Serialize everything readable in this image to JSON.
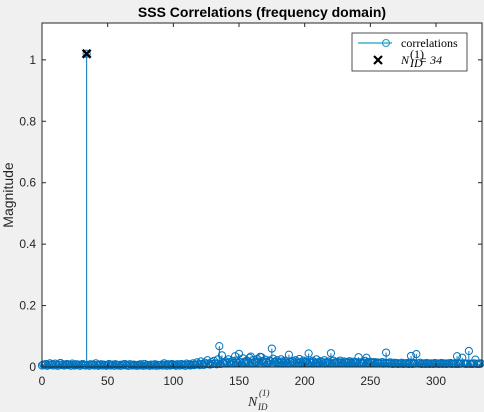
{
  "chart_data": {
    "type": "stem",
    "title": "SSS Correlations (frequency domain)",
    "ylabel": "Magnitude",
    "xlabel": {
      "base": "N",
      "sub": "ID",
      "sup": "(1)"
    },
    "xlim": [
      0,
      335
    ],
    "ylim": [
      0,
      1.12
    ],
    "xticks": [
      0,
      50,
      100,
      150,
      200,
      250,
      300
    ],
    "yticks": [
      0,
      0.2,
      0.4,
      0.6,
      0.8,
      1
    ],
    "ytick_labels": [
      "0",
      "0.2",
      "0.4",
      "0.6",
      "0.8",
      "1"
    ],
    "legend": {
      "position": "top-right",
      "entries": [
        {
          "label": "correlations",
          "marker": "o",
          "color": "#1f9ec0"
        },
        {
          "label_base": "N",
          "label_sub": "ID",
          "label_sup": "(1)",
          "label_suffix": " = 34",
          "marker": "x",
          "color": "#000000"
        }
      ]
    },
    "series": [
      {
        "name": "correlations",
        "color": "#0072bd",
        "x_start": 0,
        "values": [
          0.005,
          0.008,
          0.006,
          0.01,
          0.004,
          0.007,
          0.012,
          0.006,
          0.009,
          0.005,
          0.011,
          0.007,
          0.004,
          0.008,
          0.013,
          0.006,
          0.009,
          0.005,
          0.007,
          0.01,
          0.006,
          0.008,
          0.004,
          0.011,
          0.007,
          0.005,
          0.009,
          0.006,
          0.008,
          0.004,
          0.007,
          0.01,
          0.006,
          0.005,
          1.02,
          0.007,
          0.004,
          0.009,
          0.006,
          0.008,
          0.005,
          0.012,
          0.007,
          0.004,
          0.006,
          0.009,
          0.005,
          0.008,
          0.006,
          0.004,
          0.007,
          0.01,
          0.005,
          0.006,
          0.008,
          0.004,
          0.009,
          0.006,
          0.005,
          0.007,
          0.004,
          0.008,
          0.006,
          0.01,
          0.005,
          0.007,
          0.004,
          0.009,
          0.006,
          0.005,
          0.008,
          0.006,
          0.004,
          0.007,
          0.005,
          0.009,
          0.006,
          0.004,
          0.01,
          0.005,
          0.007,
          0.006,
          0.004,
          0.008,
          0.005,
          0.006,
          0.009,
          0.004,
          0.007,
          0.005,
          0.006,
          0.008,
          0.005,
          0.012,
          0.007,
          0.004,
          0.009,
          0.006,
          0.005,
          0.01,
          0.008,
          0.006,
          0.004,
          0.009,
          0.007,
          0.005,
          0.01,
          0.006,
          0.008,
          0.004,
          0.011,
          0.006,
          0.009,
          0.005,
          0.007,
          0.012,
          0.006,
          0.008,
          0.015,
          0.009,
          0.006,
          0.018,
          0.01,
          0.007,
          0.014,
          0.009,
          0.022,
          0.011,
          0.008,
          0.016,
          0.01,
          0.02,
          0.012,
          0.009,
          0.025,
          0.013,
          0.01,
          0.03,
          0.015,
          0.012,
          0.018,
          0.014,
          0.025,
          0.016,
          0.012,
          0.02,
          0.015,
          0.035,
          0.018,
          0.013,
          0.022,
          0.016,
          0.012,
          0.028,
          0.017,
          0.014,
          0.021,
          0.015,
          0.03,
          0.018,
          0.013,
          0.023,
          0.016,
          0.014,
          0.026,
          0.017,
          0.012,
          0.032,
          0.019,
          0.015,
          0.024,
          0.016,
          0.013,
          0.021,
          0.018,
          0.014,
          0.027,
          0.017,
          0.015,
          0.022,
          0.016,
          0.013,
          0.025,
          0.018,
          0.014,
          0.02,
          0.017,
          0.013,
          0.024,
          0.016,
          0.015,
          0.019,
          0.014,
          0.022,
          0.017,
          0.013,
          0.026,
          0.016,
          0.014,
          0.021,
          0.015,
          0.018,
          0.013,
          0.023,
          0.016,
          0.014,
          0.02,
          0.017,
          0.013,
          0.025,
          0.015,
          0.014,
          0.019,
          0.016,
          0.012,
          0.022,
          0.015,
          0.013,
          0.018,
          0.014,
          0.016,
          0.012,
          0.02,
          0.015,
          0.013,
          0.017,
          0.014,
          0.021,
          0.015,
          0.012,
          0.018,
          0.014,
          0.016,
          0.013,
          0.019,
          0.015,
          0.012,
          0.017,
          0.014,
          0.016,
          0.013,
          0.018,
          0.015,
          0.012,
          0.016,
          0.014,
          0.02,
          0.013,
          0.015,
          0.012,
          0.017,
          0.014,
          0.013,
          0.016,
          0.012,
          0.015,
          0.013,
          0.014,
          0.012,
          0.016,
          0.011,
          0.014,
          0.012,
          0.013,
          0.011,
          0.015,
          0.012,
          0.01,
          0.014,
          0.011,
          0.013,
          0.01,
          0.012,
          0.011,
          0.014,
          0.01,
          0.012,
          0.011,
          0.013,
          0.01,
          0.011,
          0.012,
          0.01,
          0.013,
          0.011,
          0.01,
          0.012,
          0.011,
          0.014,
          0.01,
          0.011,
          0.012,
          0.01,
          0.013,
          0.011,
          0.01,
          0.012,
          0.011,
          0.01,
          0.013,
          0.011,
          0.012,
          0.01,
          0.011,
          0.013,
          0.01,
          0.012,
          0.011,
          0.01,
          0.012,
          0.011,
          0.013,
          0.01,
          0.011,
          0.012,
          0.01,
          0.011,
          0.01,
          0.012,
          0.011,
          0.01,
          0.012,
          0.011,
          0.01,
          0.011,
          0.012,
          0.01,
          0.011,
          0.01,
          0.012,
          0.011,
          0.01,
          0.011,
          0.01,
          0.012
        ],
        "overrides": [
          {
            "x": 135,
            "y": 0.068
          },
          {
            "x": 137,
            "y": 0.038
          },
          {
            "x": 150,
            "y": 0.043
          },
          {
            "x": 159,
            "y": 0.034
          },
          {
            "x": 166,
            "y": 0.033
          },
          {
            "x": 175,
            "y": 0.06
          },
          {
            "x": 188,
            "y": 0.04
          },
          {
            "x": 203,
            "y": 0.044
          },
          {
            "x": 220,
            "y": 0.045
          },
          {
            "x": 241,
            "y": 0.032
          },
          {
            "x": 247,
            "y": 0.03
          },
          {
            "x": 262,
            "y": 0.047
          },
          {
            "x": 281,
            "y": 0.036
          },
          {
            "x": 285,
            "y": 0.042
          },
          {
            "x": 316,
            "y": 0.035
          },
          {
            "x": 320,
            "y": 0.03
          },
          {
            "x": 325,
            "y": 0.052
          },
          {
            "x": 330,
            "y": 0.024
          }
        ]
      }
    ],
    "highlight": {
      "x": 34,
      "y": 1.02,
      "marker": "x",
      "color": "#000000"
    }
  }
}
